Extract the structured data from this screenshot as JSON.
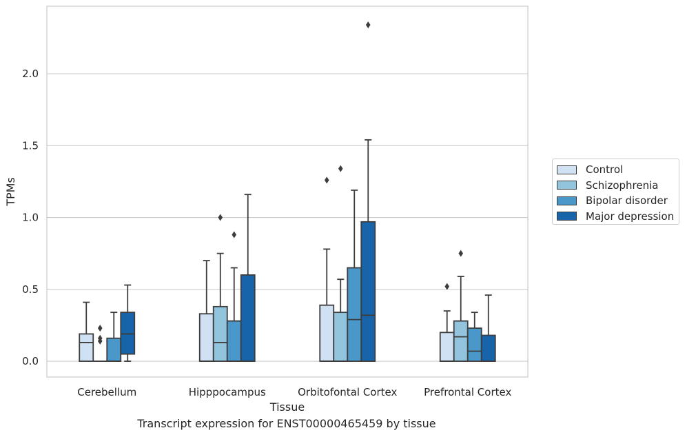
{
  "chart_data": {
    "type": "box",
    "xlabel": "Tissue",
    "ylabel": "TPMs",
    "caption": "Transcript expression for ENST00000465459 by tissue",
    "ylim": [
      -0.11,
      2.47
    ],
    "yticks": [
      0.0,
      0.5,
      1.0,
      1.5,
      2.0
    ],
    "ytick_labels": [
      "0.0",
      "0.5",
      "1.0",
      "1.5",
      "2.0"
    ],
    "grid": "horizontal",
    "legend_position": "right",
    "categories": [
      "Cerebellum",
      "Hipppocampus",
      "Orbitofontal Cortex",
      "Prefrontal Cortex"
    ],
    "series": [
      {
        "name": "Control",
        "color": "#cfe1f2",
        "boxes": [
          {
            "q1": 0.0,
            "median": 0.13,
            "q3": 0.19,
            "whisker_low": 0.0,
            "whisker_high": 0.41,
            "outliers": []
          },
          {
            "q1": 0.0,
            "median": 0.0,
            "q3": 0.33,
            "whisker_low": 0.0,
            "whisker_high": 0.7,
            "outliers": []
          },
          {
            "q1": 0.0,
            "median": 0.0,
            "q3": 0.39,
            "whisker_low": 0.0,
            "whisker_high": 0.78,
            "outliers": [
              1.26
            ]
          },
          {
            "q1": 0.0,
            "median": 0.0,
            "q3": 0.2,
            "whisker_low": 0.0,
            "whisker_high": 0.35,
            "outliers": [
              0.52
            ]
          }
        ]
      },
      {
        "name": "Schizophrenia",
        "color": "#93c4de",
        "boxes": [
          {
            "q1": 0.0,
            "median": 0.0,
            "q3": 0.0,
            "whisker_low": 0.0,
            "whisker_high": 0.0,
            "outliers": [
              0.14,
              0.16,
              0.23
            ]
          },
          {
            "q1": 0.0,
            "median": 0.13,
            "q3": 0.38,
            "whisker_low": 0.0,
            "whisker_high": 0.75,
            "outliers": [
              1.0
            ]
          },
          {
            "q1": 0.0,
            "median": 0.0,
            "q3": 0.34,
            "whisker_low": 0.0,
            "whisker_high": 0.57,
            "outliers": [
              1.34
            ]
          },
          {
            "q1": 0.0,
            "median": 0.17,
            "q3": 0.28,
            "whisker_low": 0.0,
            "whisker_high": 0.59,
            "outliers": [
              0.75
            ]
          }
        ]
      },
      {
        "name": "Bipolar disorder",
        "color": "#4a98c9",
        "boxes": [
          {
            "q1": 0.0,
            "median": 0.0,
            "q3": 0.16,
            "whisker_low": 0.0,
            "whisker_high": 0.34,
            "outliers": []
          },
          {
            "q1": 0.0,
            "median": 0.0,
            "q3": 0.28,
            "whisker_low": 0.0,
            "whisker_high": 0.65,
            "outliers": [
              0.88
            ]
          },
          {
            "q1": 0.0,
            "median": 0.29,
            "q3": 0.65,
            "whisker_low": 0.0,
            "whisker_high": 1.19,
            "outliers": []
          },
          {
            "q1": 0.0,
            "median": 0.07,
            "q3": 0.23,
            "whisker_low": 0.0,
            "whisker_high": 0.34,
            "outliers": []
          }
        ]
      },
      {
        "name": "Major depression",
        "color": "#1764ab",
        "boxes": [
          {
            "q1": 0.05,
            "median": 0.19,
            "q3": 0.34,
            "whisker_low": 0.0,
            "whisker_high": 0.53,
            "outliers": []
          },
          {
            "q1": 0.0,
            "median": 0.0,
            "q3": 0.6,
            "whisker_low": 0.0,
            "whisker_high": 1.16,
            "outliers": []
          },
          {
            "q1": 0.0,
            "median": 0.32,
            "q3": 0.97,
            "whisker_low": 0.0,
            "whisker_high": 1.54,
            "outliers": [
              2.34
            ]
          },
          {
            "q1": 0.0,
            "median": 0.0,
            "q3": 0.18,
            "whisker_low": 0.0,
            "whisker_high": 0.46,
            "outliers": []
          }
        ]
      }
    ]
  }
}
